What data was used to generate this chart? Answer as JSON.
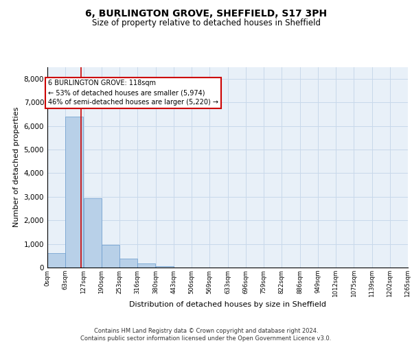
{
  "title1": "6, BURLINGTON GROVE, SHEFFIELD, S17 3PH",
  "title2": "Size of property relative to detached houses in Sheffield",
  "xlabel": "Distribution of detached houses by size in Sheffield",
  "ylabel": "Number of detached properties",
  "bar_color": "#b8d0e8",
  "bar_edge_color": "#6699cc",
  "grid_color": "#c8d8ea",
  "background_color": "#e8f0f8",
  "vline_x": 118,
  "vline_color": "#cc0000",
  "annotation_text": "6 BURLINGTON GROVE: 118sqm\n← 53% of detached houses are smaller (5,974)\n46% of semi-detached houses are larger (5,220) →",
  "annotation_box_facecolor": "#ffffff",
  "annotation_box_edgecolor": "#cc0000",
  "footer_text": "Contains HM Land Registry data © Crown copyright and database right 2024.\nContains public sector information licensed under the Open Government Licence v3.0.",
  "bin_edges": [
    0,
    63,
    127,
    190,
    253,
    316,
    380,
    443,
    506,
    569,
    633,
    696,
    759,
    822,
    886,
    949,
    1012,
    1075,
    1139,
    1202,
    1265
  ],
  "bin_labels": [
    "0sqm",
    "63sqm",
    "127sqm",
    "190sqm",
    "253sqm",
    "316sqm",
    "380sqm",
    "443sqm",
    "506sqm",
    "569sqm",
    "633sqm",
    "696sqm",
    "759sqm",
    "822sqm",
    "886sqm",
    "949sqm",
    "1012sqm",
    "1075sqm",
    "1139sqm",
    "1202sqm",
    "1265sqm"
  ],
  "bar_heights": [
    620,
    6400,
    2930,
    970,
    370,
    160,
    70,
    0,
    0,
    0,
    0,
    0,
    0,
    0,
    0,
    0,
    0,
    0,
    0,
    0
  ],
  "ylim": [
    0,
    8500
  ],
  "yticks": [
    0,
    1000,
    2000,
    3000,
    4000,
    5000,
    6000,
    7000,
    8000
  ]
}
